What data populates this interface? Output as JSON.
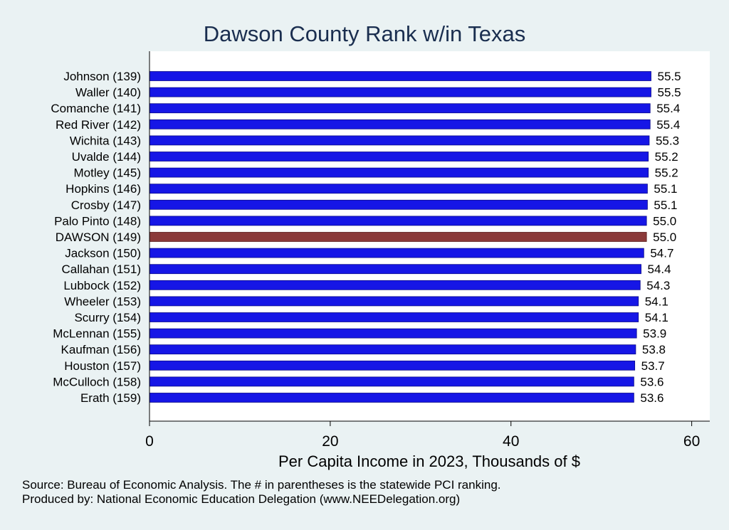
{
  "chart_data": {
    "type": "bar",
    "orientation": "horizontal",
    "title": "Dawson County Rank w/in Texas",
    "xlabel": "Per Capita Income in 2023, Thousands of $",
    "ylabel": "",
    "xlim": [
      0,
      62
    ],
    "xticks": [
      0,
      20,
      40,
      60
    ],
    "grid": false,
    "legend": "none",
    "categories": [
      "Johnson (139)",
      "Waller (140)",
      "Comanche (141)",
      "Red River (142)",
      "Wichita (143)",
      "Uvalde (144)",
      "Motley (145)",
      "Hopkins (146)",
      "Crosby (147)",
      "Palo Pinto (148)",
      "DAWSON (149)",
      "Jackson (150)",
      "Callahan (151)",
      "Lubbock (152)",
      "Wheeler (153)",
      "Scurry (154)",
      "McLennan (155)",
      "Kaufman (156)",
      "Houston (157)",
      "McCulloch (158)",
      "Erath (159)"
    ],
    "values": [
      55.5,
      55.5,
      55.4,
      55.4,
      55.3,
      55.2,
      55.2,
      55.1,
      55.1,
      55.0,
      55.0,
      54.7,
      54.4,
      54.3,
      54.1,
      54.1,
      53.9,
      53.8,
      53.7,
      53.6,
      53.6
    ],
    "value_labels": [
      "55.5",
      "55.5",
      "55.4",
      "55.4",
      "55.3",
      "55.2",
      "55.2",
      "55.1",
      "55.1",
      "55.0",
      "55.0",
      "54.7",
      "54.4",
      "54.3",
      "54.1",
      "54.1",
      "53.9",
      "53.8",
      "53.7",
      "53.6",
      "53.6"
    ],
    "highlight_category": "DAWSON (149)",
    "colors": {
      "bar": "#1616e6",
      "highlight": "#8b3a3a",
      "plot_background": "#ffffff",
      "page_background": "#eaf2f3",
      "title": "#1a2e4f"
    }
  },
  "notes": {
    "source": "Source: Bureau of Economic Analysis. The # in parentheses is the statewide PCI ranking.",
    "produced_by": "Produced by: National Economic Education Delegation (www.NEEDelegation.org)"
  }
}
